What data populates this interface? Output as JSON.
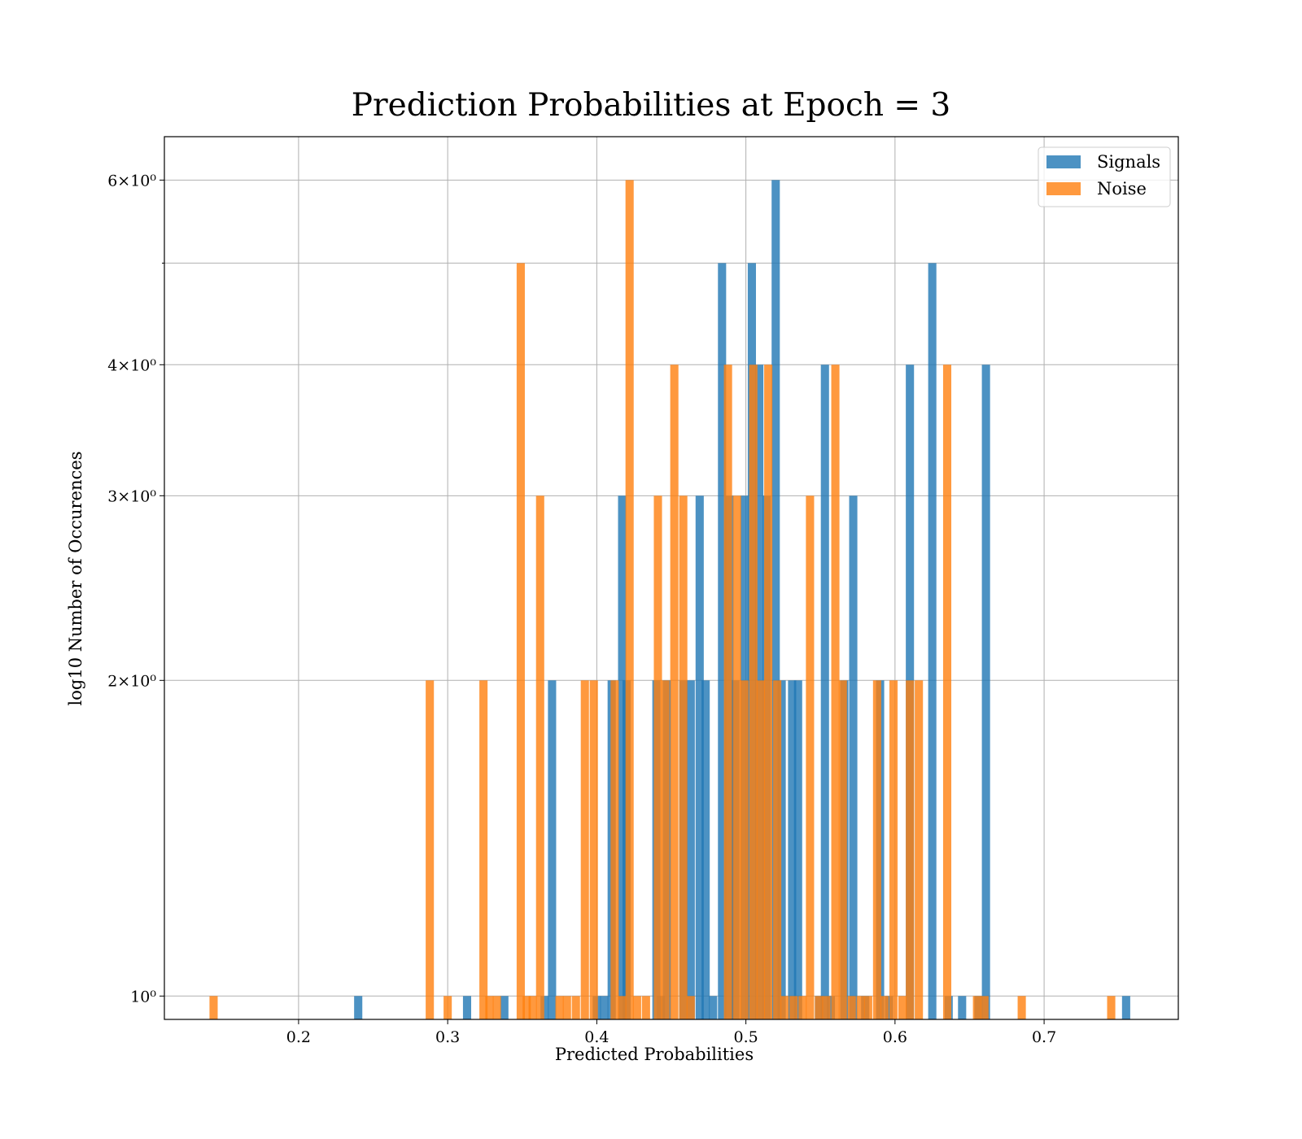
{
  "chart_data": {
    "type": "bar",
    "title": "Prediction Probabilities at Epoch = 3",
    "xlabel": "Predicted Probabilities",
    "ylabel": "log10 Number of Occurences",
    "xlim": [
      0.11,
      0.79
    ],
    "ylim": [
      0.95,
      6.6
    ],
    "yscale": "log",
    "grid": true,
    "legend_position": "top-right",
    "x_ticks": [
      0.2,
      0.3,
      0.4,
      0.5,
      0.6,
      0.7
    ],
    "x_tick_labels": [
      "0.2",
      "0.3",
      "0.4",
      "0.5",
      "0.6",
      "0.7"
    ],
    "y_ticks": [
      1,
      2,
      3,
      4,
      6
    ],
    "y_tick_labels": [
      "10⁰",
      "2×10⁰",
      "3×10⁰",
      "4×10⁰",
      "6×10⁰"
    ],
    "y_minor_ticks": [
      5
    ],
    "bar_width": 0.0055,
    "series": [
      {
        "name": "Signals",
        "color": "#1f77b4",
        "x": [
          0.24,
          0.313,
          0.338,
          0.365,
          0.37,
          0.4,
          0.405,
          0.41,
          0.417,
          0.42,
          0.44,
          0.443,
          0.447,
          0.458,
          0.463,
          0.469,
          0.473,
          0.478,
          0.484,
          0.489,
          0.493,
          0.499,
          0.504,
          0.509,
          0.514,
          0.52,
          0.524,
          0.531,
          0.535,
          0.549,
          0.553,
          0.557,
          0.566,
          0.572,
          0.58,
          0.59,
          0.596,
          0.61,
          0.625,
          0.636,
          0.645,
          0.656,
          0.661,
          0.755
        ],
        "values": [
          1,
          1,
          1,
          1,
          2,
          1,
          1,
          2,
          3,
          2,
          2,
          1,
          2,
          2,
          2,
          3,
          2,
          1,
          5,
          3,
          2,
          3,
          5,
          4,
          3,
          6,
          2,
          2,
          2,
          1,
          4,
          1,
          2,
          3,
          1,
          2,
          1,
          4,
          5,
          1,
          1,
          1,
          4,
          1
        ]
      },
      {
        "name": "Noise",
        "color": "#ff7f0e",
        "x": [
          0.143,
          0.288,
          0.3,
          0.324,
          0.328,
          0.333,
          0.349,
          0.353,
          0.357,
          0.362,
          0.375,
          0.38,
          0.386,
          0.392,
          0.398,
          0.412,
          0.417,
          0.422,
          0.427,
          0.433,
          0.441,
          0.446,
          0.452,
          0.458,
          0.463,
          0.488,
          0.494,
          0.499,
          0.505,
          0.51,
          0.515,
          0.521,
          0.526,
          0.532,
          0.538,
          0.543,
          0.549,
          0.554,
          0.56,
          0.565,
          0.571,
          0.577,
          0.582,
          0.588,
          0.593,
          0.599,
          0.605,
          0.61,
          0.616,
          0.635,
          0.655,
          0.66,
          0.685,
          0.745
        ],
        "values": [
          1,
          2,
          1,
          2,
          1,
          1,
          5,
          1,
          1,
          3,
          1,
          1,
          1,
          2,
          2,
          2,
          1,
          6,
          1,
          1,
          3,
          2,
          4,
          3,
          1,
          4,
          3,
          2,
          4,
          2,
          4,
          2,
          1,
          1,
          1,
          3,
          1,
          1,
          4,
          2,
          1,
          1,
          1,
          2,
          1,
          2,
          1,
          2,
          2,
          4,
          1,
          1,
          1,
          1
        ]
      }
    ]
  }
}
